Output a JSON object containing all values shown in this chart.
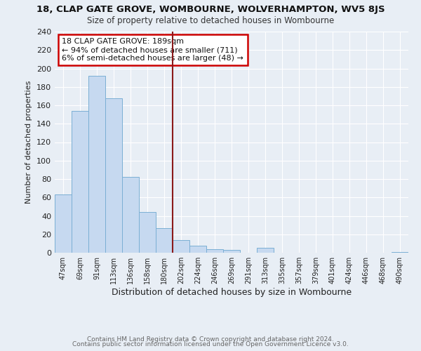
{
  "title": "18, CLAP GATE GROVE, WOMBOURNE, WOLVERHAMPTON, WV5 8JS",
  "subtitle": "Size of property relative to detached houses in Wombourne",
  "xlabel": "Distribution of detached houses by size in Wombourne",
  "ylabel": "Number of detached properties",
  "bin_labels": [
    "47sqm",
    "69sqm",
    "91sqm",
    "113sqm",
    "136sqm",
    "158sqm",
    "180sqm",
    "202sqm",
    "224sqm",
    "246sqm",
    "269sqm",
    "291sqm",
    "313sqm",
    "335sqm",
    "357sqm",
    "379sqm",
    "401sqm",
    "424sqm",
    "446sqm",
    "468sqm",
    "490sqm"
  ],
  "bin_values": [
    63,
    154,
    192,
    168,
    82,
    44,
    27,
    14,
    8,
    4,
    3,
    0,
    5,
    0,
    0,
    0,
    0,
    0,
    0,
    0,
    1
  ],
  "bar_color": "#c6d9f0",
  "bar_edge_color": "#7bafd4",
  "vline_x_idx": 7,
  "vline_color": "#8b1a1a",
  "ylim": [
    0,
    240
  ],
  "yticks": [
    0,
    20,
    40,
    60,
    80,
    100,
    120,
    140,
    160,
    180,
    200,
    220,
    240
  ],
  "annotation_title": "18 CLAP GATE GROVE: 189sqm",
  "annotation_line1": "← 94% of detached houses are smaller (711)",
  "annotation_line2": "6% of semi-detached houses are larger (48) →",
  "annotation_box_facecolor": "#ffffff",
  "annotation_box_edgecolor": "#cc0000",
  "footer1": "Contains HM Land Registry data © Crown copyright and database right 2024.",
  "footer2": "Contains public sector information licensed under the Open Government Licence v3.0.",
  "bg_color": "#e8eef5",
  "plot_bg_color": "#e8eef5",
  "grid_color": "#ffffff",
  "title_fontsize": 9.5,
  "subtitle_fontsize": 8.5,
  "ylabel_fontsize": 8,
  "xlabel_fontsize": 9,
  "tick_fontsize": 7,
  "ytick_fontsize": 8,
  "footer_fontsize": 6.5
}
